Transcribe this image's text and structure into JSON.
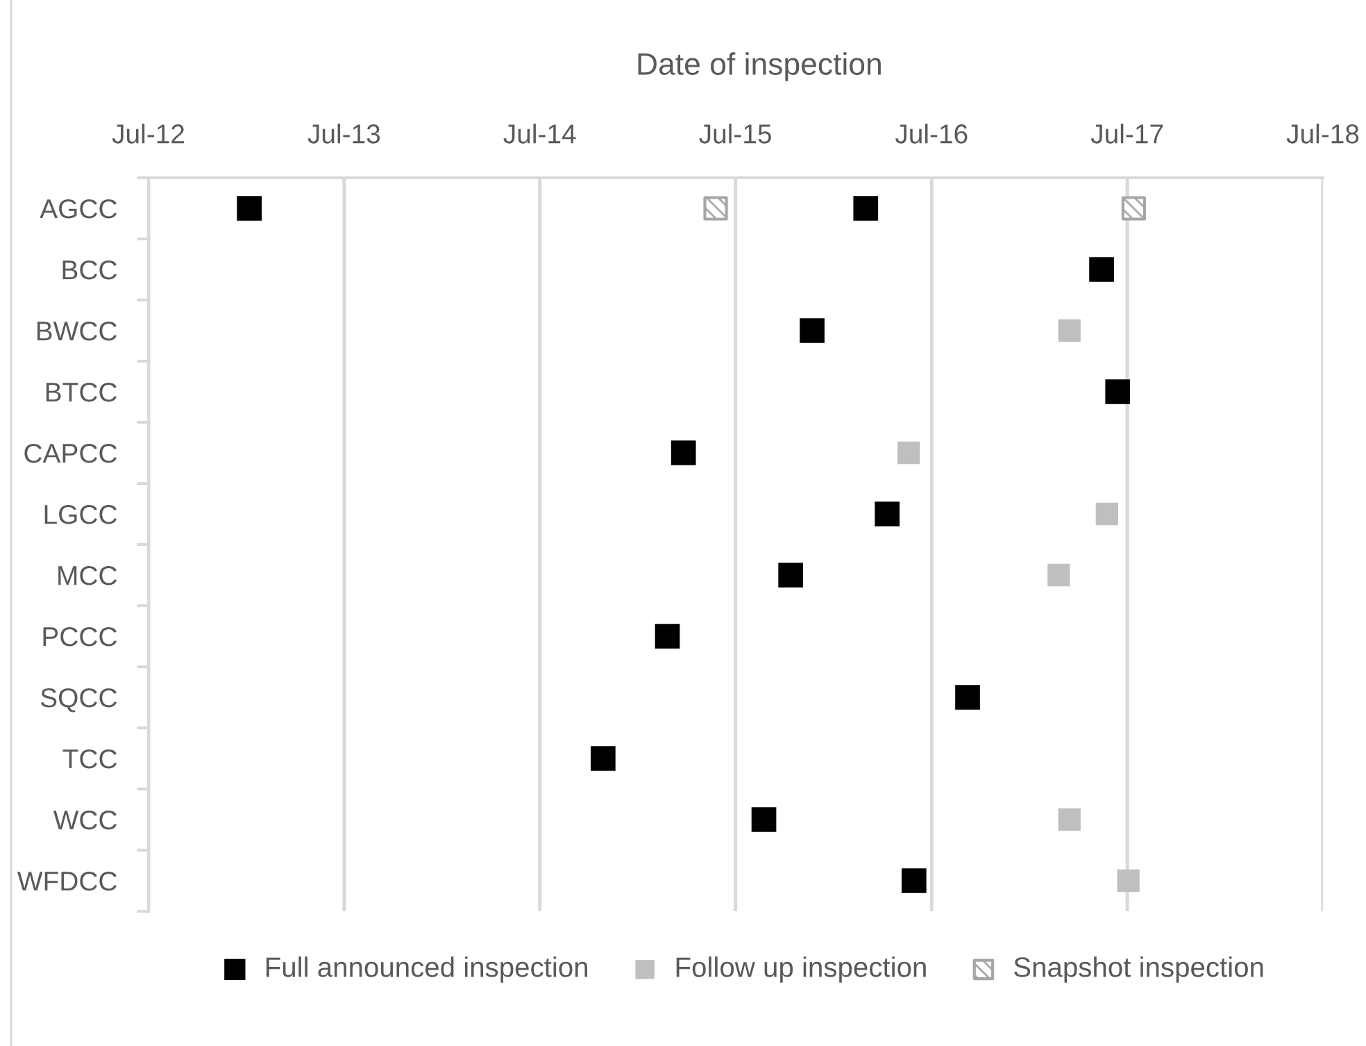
{
  "chart_data": {
    "type": "scatter",
    "orientation": "horizontal",
    "xlabel": "Date of inspection",
    "categories": [
      "AGCC",
      "BCC",
      "BWCC",
      "BTCC",
      "CAPCC",
      "LGCC",
      "MCC",
      "PCCC",
      "SQCC",
      "TCC",
      "WCC",
      "WFDCC"
    ],
    "xlim": [
      "2012-07",
      "2018-07"
    ],
    "xticks": [
      {
        "value": "2012-07",
        "label": "Jul-12"
      },
      {
        "value": "2013-07",
        "label": "Jul-13"
      },
      {
        "value": "2014-07",
        "label": "Jul-14"
      },
      {
        "value": "2015-07",
        "label": "Jul-15"
      },
      {
        "value": "2016-07",
        "label": "Jul-16"
      },
      {
        "value": "2017-07",
        "label": "Jul-17"
      },
      {
        "value": "2018-07",
        "label": "Jul-18"
      }
    ],
    "grid": "x",
    "legend": "bottom",
    "marker": "square",
    "series": [
      {
        "name": "Full announced inspection",
        "color": "#000000",
        "x": [
          "AGCC",
          "AGCC",
          "BCC",
          "BWCC",
          "BTCC",
          "CAPCC",
          "LGCC",
          "MCC",
          "PCCC",
          "SQCC",
          "TCC",
          "WCC",
          "WFDCC"
        ],
        "values": [
          15710,
          16860,
          17300,
          16760,
          17330,
          16520,
          16900,
          16720,
          16490,
          17050,
          16370,
          16670,
          16950
        ]
      },
      {
        "name": "Follow up inspection",
        "color": "#bfbfbf",
        "x": [
          "BWCC",
          "CAPCC",
          "LGCC",
          "MCC",
          "WCC",
          "WFDCC"
        ],
        "values": [
          17240,
          16940,
          17310,
          17220,
          17240,
          17350
        ]
      },
      {
        "name": "Snapshot inspection",
        "color": "#a6a6a6",
        "x": [
          "AGCC",
          "AGCC"
        ],
        "values": [
          16580,
          17360
        ]
      }
    ]
  }
}
